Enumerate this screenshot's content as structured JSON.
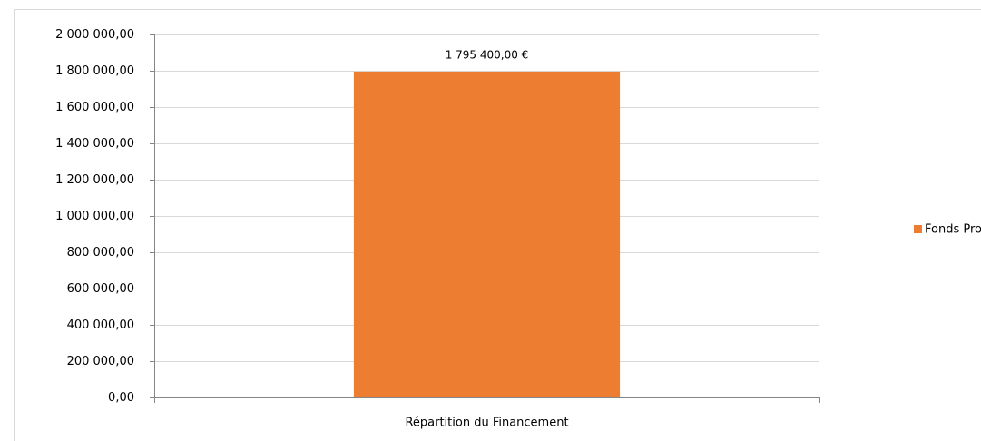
{
  "chart_data": {
    "type": "bar",
    "categories": [
      "Répartition du Financement"
    ],
    "series": [
      {
        "name": "Fonds Propres",
        "color": "#ed7d31",
        "values": [
          1795400
        ],
        "value_labels": [
          "1 795 400,00 €"
        ]
      }
    ],
    "ylim": [
      0,
      2000000
    ],
    "yticks": [
      {
        "value": 0,
        "label": "0,00"
      },
      {
        "value": 200000,
        "label": "200 000,00"
      },
      {
        "value": 400000,
        "label": "400 000,00"
      },
      {
        "value": 600000,
        "label": "600 000,00"
      },
      {
        "value": 800000,
        "label": "800 000,00"
      },
      {
        "value": 1000000,
        "label": "1 000 000,00"
      },
      {
        "value": 1200000,
        "label": "1 200 000,00"
      },
      {
        "value": 1400000,
        "label": "1 400 000,00"
      },
      {
        "value": 1600000,
        "label": "1 600 000,00"
      },
      {
        "value": 1800000,
        "label": "1 800 000,00"
      },
      {
        "value": 2000000,
        "label": "2 000 000,00"
      }
    ],
    "grid": true,
    "legend": "right"
  }
}
